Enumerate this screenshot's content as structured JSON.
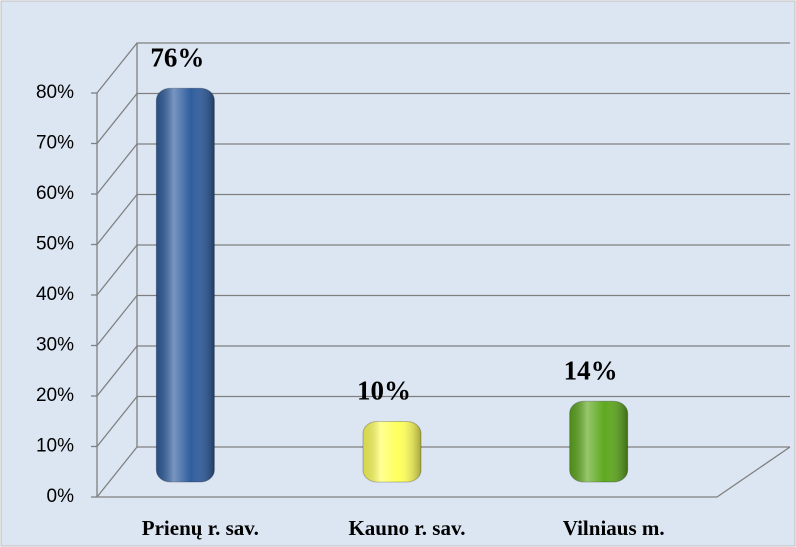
{
  "chart_data": {
    "type": "bar",
    "categories": [
      "Prienų r. sav.",
      "Kauno r. sav.",
      "Vilniaus m."
    ],
    "values": [
      76,
      10,
      14
    ],
    "value_labels": [
      "76%",
      "10%",
      "14%"
    ],
    "colors": [
      "#2f5d9e",
      "#ffff5c",
      "#5ea81e"
    ],
    "ylim": [
      0,
      80
    ],
    "yticks": [
      {
        "value": 0,
        "label": "0%"
      },
      {
        "value": 10,
        "label": "10%"
      },
      {
        "value": 20,
        "label": "20%"
      },
      {
        "value": 30,
        "label": "30%"
      },
      {
        "value": 40,
        "label": "40%"
      },
      {
        "value": 50,
        "label": "50%"
      },
      {
        "value": 60,
        "label": "60%"
      },
      {
        "value": 70,
        "label": "70%"
      },
      {
        "value": 80,
        "label": "80%"
      }
    ],
    "grid": true
  }
}
